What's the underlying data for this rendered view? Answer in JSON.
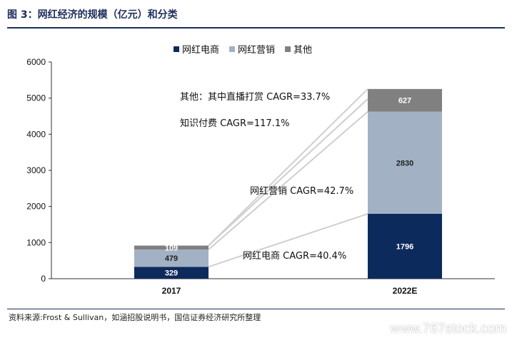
{
  "figure": {
    "title": "图 3：网红经济的规模（亿元）和分类",
    "source": "资料来源:Frost & Sullivan，如涵招股说明书，国信证券经济研究所整理",
    "watermark": "www.767stock.com"
  },
  "chart_data": {
    "type": "bar",
    "stacked": true,
    "categories": [
      "2017",
      "2022E"
    ],
    "series": [
      {
        "name": "网红电商",
        "values": [
          329,
          1796
        ],
        "color": "#0d2a5c",
        "label_color": "#ffffff"
      },
      {
        "name": "网红营销",
        "values": [
          479,
          2830
        ],
        "color": "#a2b1c4",
        "label_color": "#222222"
      },
      {
        "name": "其他",
        "values": [
          109,
          627
        ],
        "color": "#808080",
        "label_color": "#ffffff"
      }
    ],
    "ylim": [
      0,
      6000
    ],
    "yticks": [
      0,
      1000,
      2000,
      3000,
      4000,
      5000,
      6000
    ],
    "grid": false,
    "legend_position": "top-center",
    "annotations": [
      {
        "text": "其他：其中直播打赏 CAGR=33.7%",
        "series": "其他"
      },
      {
        "text": "知识付费 CAGR=117.1%",
        "series": "其他"
      },
      {
        "text": "网红营销 CAGR=42.7%",
        "series": "网红营销"
      },
      {
        "text": "网红电商 CAGR=40.4%",
        "series": "网红电商"
      }
    ]
  }
}
